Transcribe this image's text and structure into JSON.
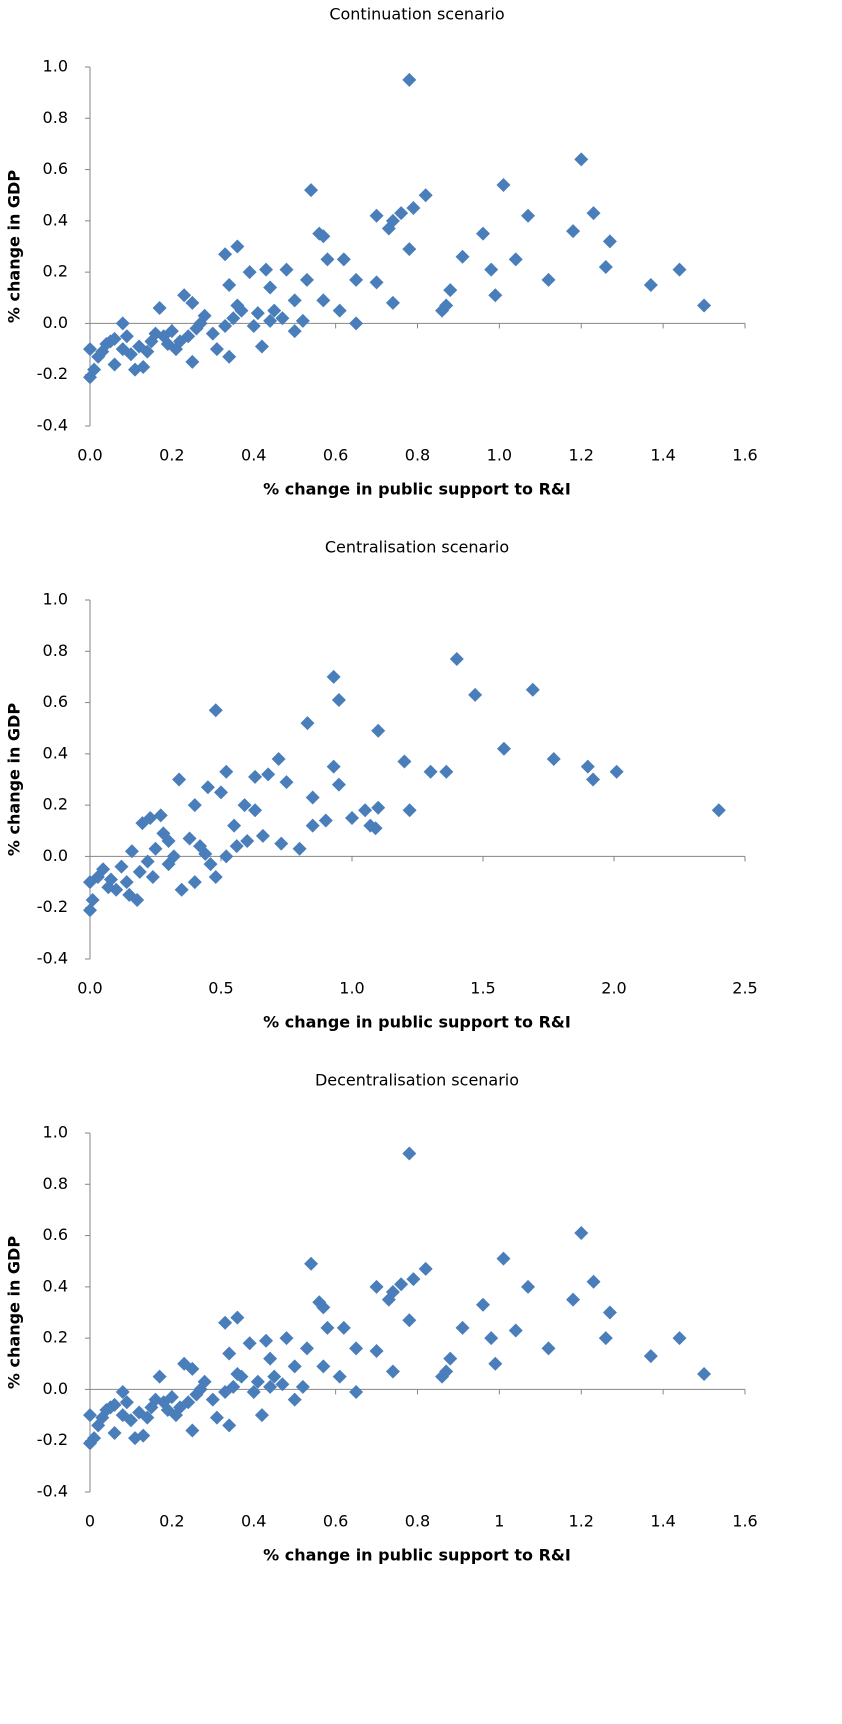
{
  "chart_data": [
    {
      "type": "scatter",
      "title": "Continuation scenario",
      "xlabel": "% change in public support to R&I",
      "ylabel": "% change in GDP",
      "color": "#4a7ebb",
      "xlim": [
        0,
        1.6
      ],
      "ylim": [
        -0.4,
        1.0
      ],
      "xticks": [
        {
          "value": 0,
          "label": "0.0"
        },
        0.2,
        0.4,
        0.6,
        0.8,
        {
          "value": 1,
          "label": "1.0"
        },
        1.2,
        1.4,
        1.6
      ],
      "yticks": [
        -0.4,
        -0.2,
        {
          "value": 0,
          "label": "0.0"
        },
        0.2,
        0.4,
        0.6,
        0.8,
        {
          "value": 1,
          "label": "1.0"
        }
      ],
      "x": [
        0.78,
        1.2,
        1.01,
        0.54,
        0.82,
        1.23,
        0.7,
        1.07,
        0.79,
        0.76,
        0.74,
        0.73,
        1.18,
        0.56,
        0.57,
        0.96,
        1.27,
        0.36,
        0.78,
        0.33,
        0.91,
        0.58,
        0.62,
        1.04,
        1.26,
        1.44,
        0.98,
        0.48,
        0.43,
        0.39,
        0.34,
        0.53,
        0.65,
        0.7,
        1.12,
        0.44,
        1.37,
        0.88,
        0.99,
        0.23,
        0.5,
        0.57,
        0.74,
        0.87,
        0.86,
        1.5,
        0.61,
        0.17,
        0.25,
        0.45,
        0.65,
        0.5,
        0.42,
        0.34,
        0.25,
        0.31,
        0.13,
        0.11,
        0.06,
        0.0,
        0.01,
        0.02,
        0.0,
        0.04,
        0.06,
        0.09,
        0.12,
        0.15,
        0.18,
        0.2,
        0.22,
        0.26,
        0.28,
        0.3,
        0.35,
        0.37,
        0.4,
        0.41,
        0.47,
        0.52,
        0.08,
        0.1,
        0.14,
        0.19,
        0.21,
        0.24,
        0.27,
        0.16,
        0.08,
        0.03,
        0.05,
        0.33,
        0.36,
        0.44
      ],
      "values": [
        0.95,
        0.64,
        0.54,
        0.52,
        0.5,
        0.43,
        0.42,
        0.42,
        0.45,
        0.43,
        0.4,
        0.37,
        0.36,
        0.35,
        0.34,
        0.35,
        0.32,
        0.3,
        0.29,
        0.27,
        0.26,
        0.25,
        0.25,
        0.25,
        0.22,
        0.21,
        0.21,
        0.21,
        0.21,
        0.2,
        0.15,
        0.17,
        0.17,
        0.16,
        0.17,
        0.14,
        0.15,
        0.13,
        0.11,
        0.11,
        0.09,
        0.09,
        0.08,
        0.07,
        0.05,
        0.07,
        0.05,
        0.06,
        0.08,
        0.05,
        0.0,
        -0.03,
        -0.09,
        -0.13,
        -0.15,
        -0.1,
        -0.17,
        -0.18,
        -0.16,
        -0.21,
        -0.18,
        -0.13,
        -0.1,
        -0.08,
        -0.06,
        -0.05,
        -0.09,
        -0.07,
        -0.05,
        -0.03,
        -0.07,
        -0.02,
        0.03,
        -0.04,
        0.02,
        0.05,
        -0.01,
        0.04,
        0.02,
        0.01,
        -0.1,
        -0.12,
        -0.11,
        -0.08,
        -0.1,
        -0.05,
        0.0,
        -0.04,
        0.0,
        -0.11,
        -0.07,
        -0.01,
        0.07,
        0.01
      ]
    },
    {
      "type": "scatter",
      "title": "Centralisation scenario",
      "xlabel": "% change in public support to R&I",
      "ylabel": "% change in GDP",
      "color": "#4a7ebb",
      "xlim": [
        0,
        2.5
      ],
      "ylim": [
        -0.4,
        1.0
      ],
      "xticks": [
        {
          "value": 0,
          "label": "0.0"
        },
        0.5,
        {
          "value": 1,
          "label": "1.0"
        },
        1.5,
        {
          "value": 2,
          "label": "2.0"
        },
        2.5
      ],
      "yticks": [
        -0.4,
        -0.2,
        {
          "value": 0,
          "label": "0.0"
        },
        0.2,
        0.4,
        0.6,
        0.8,
        {
          "value": 1,
          "label": "1.0"
        }
      ],
      "x": [
        2.4,
        1.4,
        0.93,
        1.69,
        1.47,
        0.95,
        0.48,
        0.83,
        1.1,
        1.58,
        1.77,
        0.72,
        1.2,
        1.9,
        2.01,
        1.3,
        1.36,
        0.93,
        0.34,
        1.92,
        0.63,
        0.68,
        0.52,
        0.95,
        0.75,
        0.45,
        0.5,
        0.85,
        0.59,
        0.4,
        0.63,
        1.0,
        1.05,
        1.1,
        1.22,
        0.9,
        1.07,
        1.09,
        0.85,
        0.73,
        0.8,
        0.66,
        0.55,
        0.27,
        0.23,
        0.2,
        0.28,
        0.3,
        0.38,
        0.42,
        0.46,
        0.48,
        0.4,
        0.35,
        0.18,
        0.15,
        0.1,
        0.0,
        0.01,
        0.0,
        0.03,
        0.05,
        0.08,
        0.12,
        0.16,
        0.19,
        0.22,
        0.25,
        0.32,
        0.44,
        0.52,
        0.56,
        0.6,
        0.14,
        0.07,
        0.24,
        0.3
      ],
      "values": [
        0.18,
        0.77,
        0.7,
        0.65,
        0.63,
        0.61,
        0.57,
        0.52,
        0.49,
        0.42,
        0.38,
        0.38,
        0.37,
        0.35,
        0.33,
        0.33,
        0.33,
        0.35,
        0.3,
        0.3,
        0.31,
        0.32,
        0.33,
        0.28,
        0.29,
        0.27,
        0.25,
        0.23,
        0.2,
        0.2,
        0.18,
        0.15,
        0.18,
        0.19,
        0.18,
        0.14,
        0.12,
        0.11,
        0.12,
        0.05,
        0.03,
        0.08,
        0.12,
        0.16,
        0.15,
        0.13,
        0.09,
        0.06,
        0.07,
        0.04,
        -0.03,
        -0.08,
        -0.1,
        -0.13,
        -0.17,
        -0.15,
        -0.13,
        -0.21,
        -0.17,
        -0.1,
        -0.08,
        -0.05,
        -0.09,
        -0.04,
        0.02,
        -0.06,
        -0.02,
        0.03,
        0.0,
        0.01,
        0.0,
        0.04,
        0.06,
        -0.1,
        -0.12,
        -0.08,
        -0.03
      ]
    },
    {
      "type": "scatter",
      "title": "Decentralisation scenario",
      "xlabel": "% change in public support to R&I",
      "ylabel": "% change in GDP",
      "color": "#4a7ebb",
      "xlim": [
        0,
        1.6
      ],
      "ylim": [
        -0.4,
        1.0
      ],
      "xticks": [
        0,
        0.2,
        0.4,
        0.6,
        0.8,
        1,
        1.2,
        1.4,
        1.6
      ],
      "yticks": [
        -0.4,
        -0.2,
        {
          "value": 0,
          "label": "0.0"
        },
        0.2,
        0.4,
        0.6,
        0.8,
        {
          "value": 1,
          "label": "1.0"
        }
      ],
      "x": [
        0.78,
        1.2,
        1.01,
        0.54,
        0.82,
        1.23,
        0.7,
        1.07,
        0.79,
        0.76,
        0.74,
        0.73,
        1.18,
        0.56,
        0.57,
        0.96,
        1.27,
        0.36,
        0.78,
        0.33,
        0.91,
        0.58,
        0.62,
        1.04,
        1.26,
        1.44,
        0.98,
        0.48,
        0.43,
        0.39,
        0.34,
        0.53,
        0.65,
        0.7,
        1.12,
        0.44,
        1.37,
        0.88,
        0.99,
        0.23,
        0.5,
        0.57,
        0.74,
        0.87,
        0.86,
        1.5,
        0.61,
        0.17,
        0.25,
        0.45,
        0.65,
        0.5,
        0.42,
        0.34,
        0.25,
        0.31,
        0.13,
        0.11,
        0.06,
        0.0,
        0.01,
        0.02,
        0.0,
        0.04,
        0.06,
        0.09,
        0.12,
        0.15,
        0.18,
        0.2,
        0.22,
        0.26,
        0.28,
        0.3,
        0.35,
        0.37,
        0.4,
        0.41,
        0.47,
        0.52,
        0.08,
        0.1,
        0.14,
        0.19,
        0.21,
        0.24,
        0.27,
        0.16,
        0.08,
        0.03,
        0.05,
        0.33,
        0.36,
        0.44
      ],
      "values": [
        0.92,
        0.61,
        0.51,
        0.49,
        0.47,
        0.42,
        0.4,
        0.4,
        0.43,
        0.41,
        0.38,
        0.35,
        0.35,
        0.34,
        0.32,
        0.33,
        0.3,
        0.28,
        0.27,
        0.26,
        0.24,
        0.24,
        0.24,
        0.23,
        0.2,
        0.2,
        0.2,
        0.2,
        0.19,
        0.18,
        0.14,
        0.16,
        0.16,
        0.15,
        0.16,
        0.12,
        0.13,
        0.12,
        0.1,
        0.1,
        0.09,
        0.09,
        0.07,
        0.07,
        0.05,
        0.06,
        0.05,
        0.05,
        0.08,
        0.05,
        -0.01,
        -0.04,
        -0.1,
        -0.14,
        -0.16,
        -0.11,
        -0.18,
        -0.19,
        -0.17,
        -0.21,
        -0.19,
        -0.14,
        -0.1,
        -0.08,
        -0.06,
        -0.05,
        -0.09,
        -0.07,
        -0.05,
        -0.03,
        -0.07,
        -0.02,
        0.03,
        -0.04,
        0.01,
        0.05,
        -0.01,
        0.03,
        0.02,
        0.01,
        -0.1,
        -0.12,
        -0.11,
        -0.08,
        -0.1,
        -0.05,
        0.0,
        -0.04,
        -0.01,
        -0.11,
        -0.07,
        -0.01,
        0.06,
        0.01
      ]
    }
  ]
}
